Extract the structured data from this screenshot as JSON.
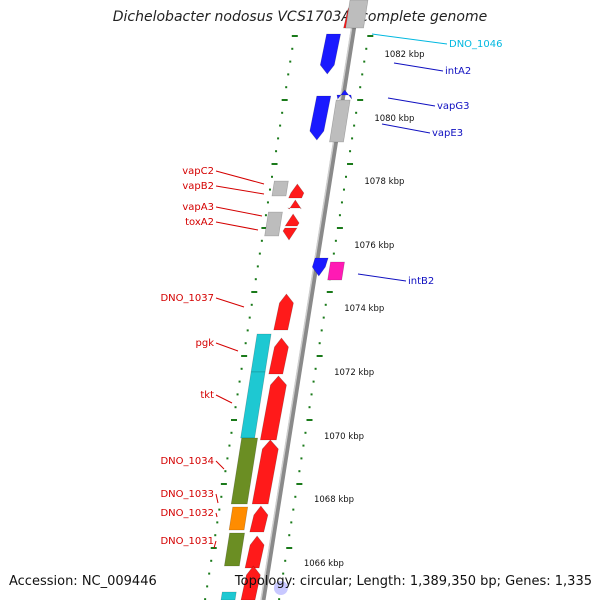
{
  "header": {
    "title": "Dichelobacter nodosus VCS1703A, complete genome"
  },
  "footer": {
    "accession": "Accession: NC_009446",
    "topology": "Topology: circular; Length: 1,389,350 bp; Genes: 1,335"
  },
  "colors": {
    "red": "#ff1a1a",
    "blue": "#1a1aff",
    "grey": "#bdbdbd",
    "cyan": "#1ec8d2",
    "olive": "#6b8e23",
    "orange": "#ff8c00",
    "magenta": "#ff1ab4",
    "label_red": "#d40000",
    "label_blue": "#1010c0",
    "label_cyan": "#00b8e0",
    "tick_green": "#1a7a1a"
  },
  "scale_ticks": [
    {
      "label": "1082 kbp",
      "kbp": 1082
    },
    {
      "label": "1080 kbp",
      "kbp": 1080
    },
    {
      "label": "1078 kbp",
      "kbp": 1078
    },
    {
      "label": "1076 kbp",
      "kbp": 1076
    },
    {
      "label": "1074 kbp",
      "kbp": 1074
    },
    {
      "label": "1072 kbp",
      "kbp": 1072
    },
    {
      "label": "1070 kbp",
      "kbp": 1070
    },
    {
      "label": "1068 kbp",
      "kbp": 1068
    },
    {
      "label": "1066 kbp",
      "kbp": 1066
    }
  ],
  "gene_labels_left": [
    {
      "name": "vapC2",
      "color": "label_red"
    },
    {
      "name": "vapB2",
      "color": "label_red"
    },
    {
      "name": "vapA3",
      "color": "label_red"
    },
    {
      "name": "toxA2",
      "color": "label_red"
    },
    {
      "name": "DNO_1037",
      "color": "label_red"
    },
    {
      "name": "pgk",
      "color": "label_red"
    },
    {
      "name": "tkt",
      "color": "label_red"
    },
    {
      "name": "DNO_1034",
      "color": "label_red"
    },
    {
      "name": "DNO_1033",
      "color": "label_red"
    },
    {
      "name": "DNO_1032",
      "color": "label_red"
    },
    {
      "name": "DNO_1031",
      "color": "label_red"
    }
  ],
  "gene_labels_right": [
    {
      "name": "DNO_1046",
      "color": "label_cyan"
    },
    {
      "name": "intA2",
      "color": "label_blue"
    },
    {
      "name": "vapG3",
      "color": "label_blue"
    },
    {
      "name": "vapE3",
      "color": "label_blue"
    },
    {
      "name": "intB2",
      "color": "label_blue"
    }
  ]
}
